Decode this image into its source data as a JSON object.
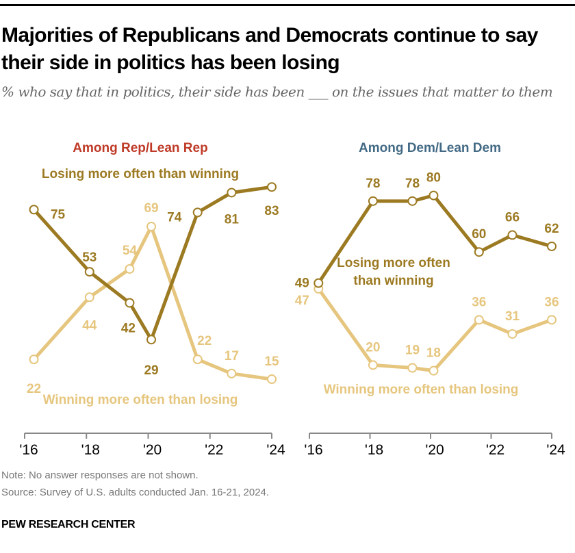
{
  "title": "Majorities of Republicans and Democrats continue to say their side in politics has been losing",
  "subtitle": "% who say that in politics, their side has been ___ on the issues that matter to them",
  "note": "Note: No answer responses are not shown.",
  "source": "Source: Survey of U.S. adults conducted Jan. 16-21, 2024.",
  "brand": "PEW RESEARCH CENTER",
  "colors": {
    "losing": "#9c7a22",
    "winning": "#e6c67e",
    "rep": "#bf3a27",
    "dem": "#436a85",
    "axis": "#888888"
  },
  "chart_data": [
    {
      "type": "line",
      "title": "Among Rep/Lean Rep",
      "x": [
        2016.3,
        2018.1,
        2019.4,
        2020.1,
        2021.6,
        2022.7,
        2024.0
      ],
      "xticks": [
        "'16",
        "'18",
        "'20",
        "'22",
        "'24"
      ],
      "xlim": [
        2016,
        2024
      ],
      "ylim": [
        0,
        100
      ],
      "grid": false,
      "series": [
        {
          "name": "Losing more often than winning",
          "values": [
            75,
            53,
            42,
            29,
            74,
            81,
            83
          ]
        },
        {
          "name": "Winning more often than losing",
          "values": [
            22,
            44,
            54,
            69,
            22,
            17,
            15
          ]
        }
      ]
    },
    {
      "type": "line",
      "title": "Among Dem/Lean Dem",
      "x": [
        2016.3,
        2018.1,
        2019.4,
        2020.1,
        2021.6,
        2022.7,
        2024.0
      ],
      "xticks": [
        "'16",
        "'18",
        "'20",
        "'22",
        "'24"
      ],
      "xlim": [
        2016,
        2024
      ],
      "ylim": [
        0,
        100
      ],
      "grid": false,
      "series": [
        {
          "name": "Losing more often than winning",
          "name_lines": [
            "Losing more often",
            "than winning"
          ],
          "values": [
            49,
            78,
            78,
            80,
            60,
            66,
            62
          ]
        },
        {
          "name": "Winning more often than losing",
          "values": [
            47,
            20,
            19,
            18,
            36,
            31,
            36
          ]
        }
      ]
    }
  ]
}
